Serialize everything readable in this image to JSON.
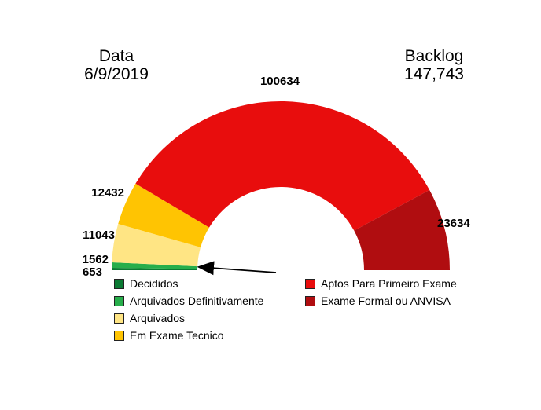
{
  "header": {
    "date_label": "Data",
    "date_value": "6/9/2019",
    "backlog_label": "Backlog",
    "backlog_value": "147,743"
  },
  "chart_data": {
    "type": "pie",
    "subtype": "half-donut-gauge",
    "span_degrees": 180,
    "direction": "left-to-right-clockwise",
    "legend_position": "bottom, two columns",
    "annotation": "black arrow pointing to the small green segments at the lower-left of the gauge",
    "segments": [
      {
        "label": "Decididos",
        "value": 653,
        "color": "#0b7a33"
      },
      {
        "label": "Arquivados Definitivamente",
        "value": 1562,
        "color": "#27ae4b"
      },
      {
        "label": "Arquivados",
        "value": 11043,
        "color": "#ffe584"
      },
      {
        "label": "Em Exame Tecnico",
        "value": 12432,
        "color": "#ffc402"
      },
      {
        "label": "Aptos Para Primeiro Exame",
        "value": 100634,
        "color": "#e80d0d"
      },
      {
        "label": "Exame Formal ou ANVISA",
        "value": 23634,
        "color": "#b00d10"
      }
    ]
  }
}
